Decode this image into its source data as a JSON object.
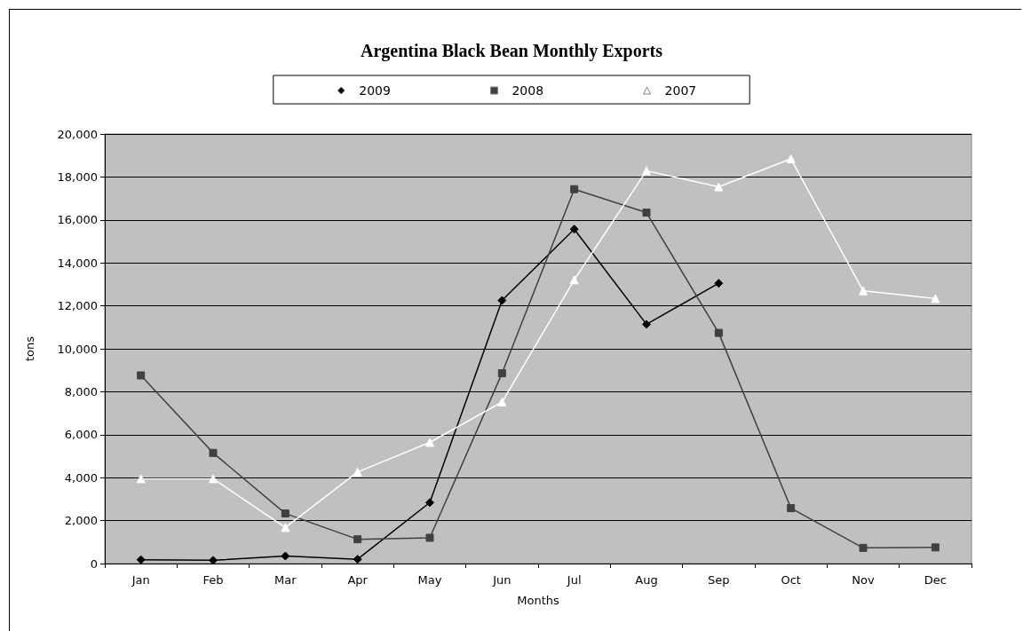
{
  "chart_data": {
    "type": "line",
    "title": "Argentina Black Bean Monthly Exports",
    "xlabel": "Months",
    "ylabel": "tons",
    "categories": [
      "Jan",
      "Feb",
      "Mar",
      "Apr",
      "May",
      "Jun",
      "Jul",
      "Aug",
      "Sep",
      "Oct",
      "Nov",
      "Dec"
    ],
    "series": [
      {
        "name": "2009",
        "color": "#000000",
        "marker": "diamond",
        "values": [
          180,
          150,
          350,
          200,
          2840,
          12250,
          15570,
          11140,
          13050,
          null,
          null,
          null
        ]
      },
      {
        "name": "2008",
        "color": "#404040",
        "marker": "square",
        "values": [
          8760,
          5150,
          2330,
          1130,
          1200,
          8860,
          17430,
          16340,
          10740,
          2580,
          730,
          750
        ]
      },
      {
        "name": "2007",
        "color": "#ffffff",
        "marker": "triangle",
        "values": [
          3950,
          3950,
          1680,
          4260,
          5640,
          7520,
          13210,
          18290,
          17540,
          18840,
          12700,
          12340
        ]
      }
    ],
    "ylim": [
      0,
      20000
    ],
    "yticks": [
      0,
      {
        "value": 2000,
        "label": "2,000"
      },
      {
        "value": 4000,
        "label": "4,000"
      },
      {
        "value": 6000,
        "label": "6,000"
      },
      {
        "value": 8000,
        "label": "8,000"
      },
      {
        "value": 10000,
        "label": "10,000"
      },
      {
        "value": 12000,
        "label": "12,000"
      },
      {
        "value": 14000,
        "label": "14,000"
      },
      {
        "value": 16000,
        "label": "16,000"
      },
      {
        "value": 18000,
        "label": "18,000"
      },
      {
        "value": 20000,
        "label": "20,000"
      }
    ],
    "grid": "y",
    "legend": "top",
    "line_style": "solid"
  }
}
